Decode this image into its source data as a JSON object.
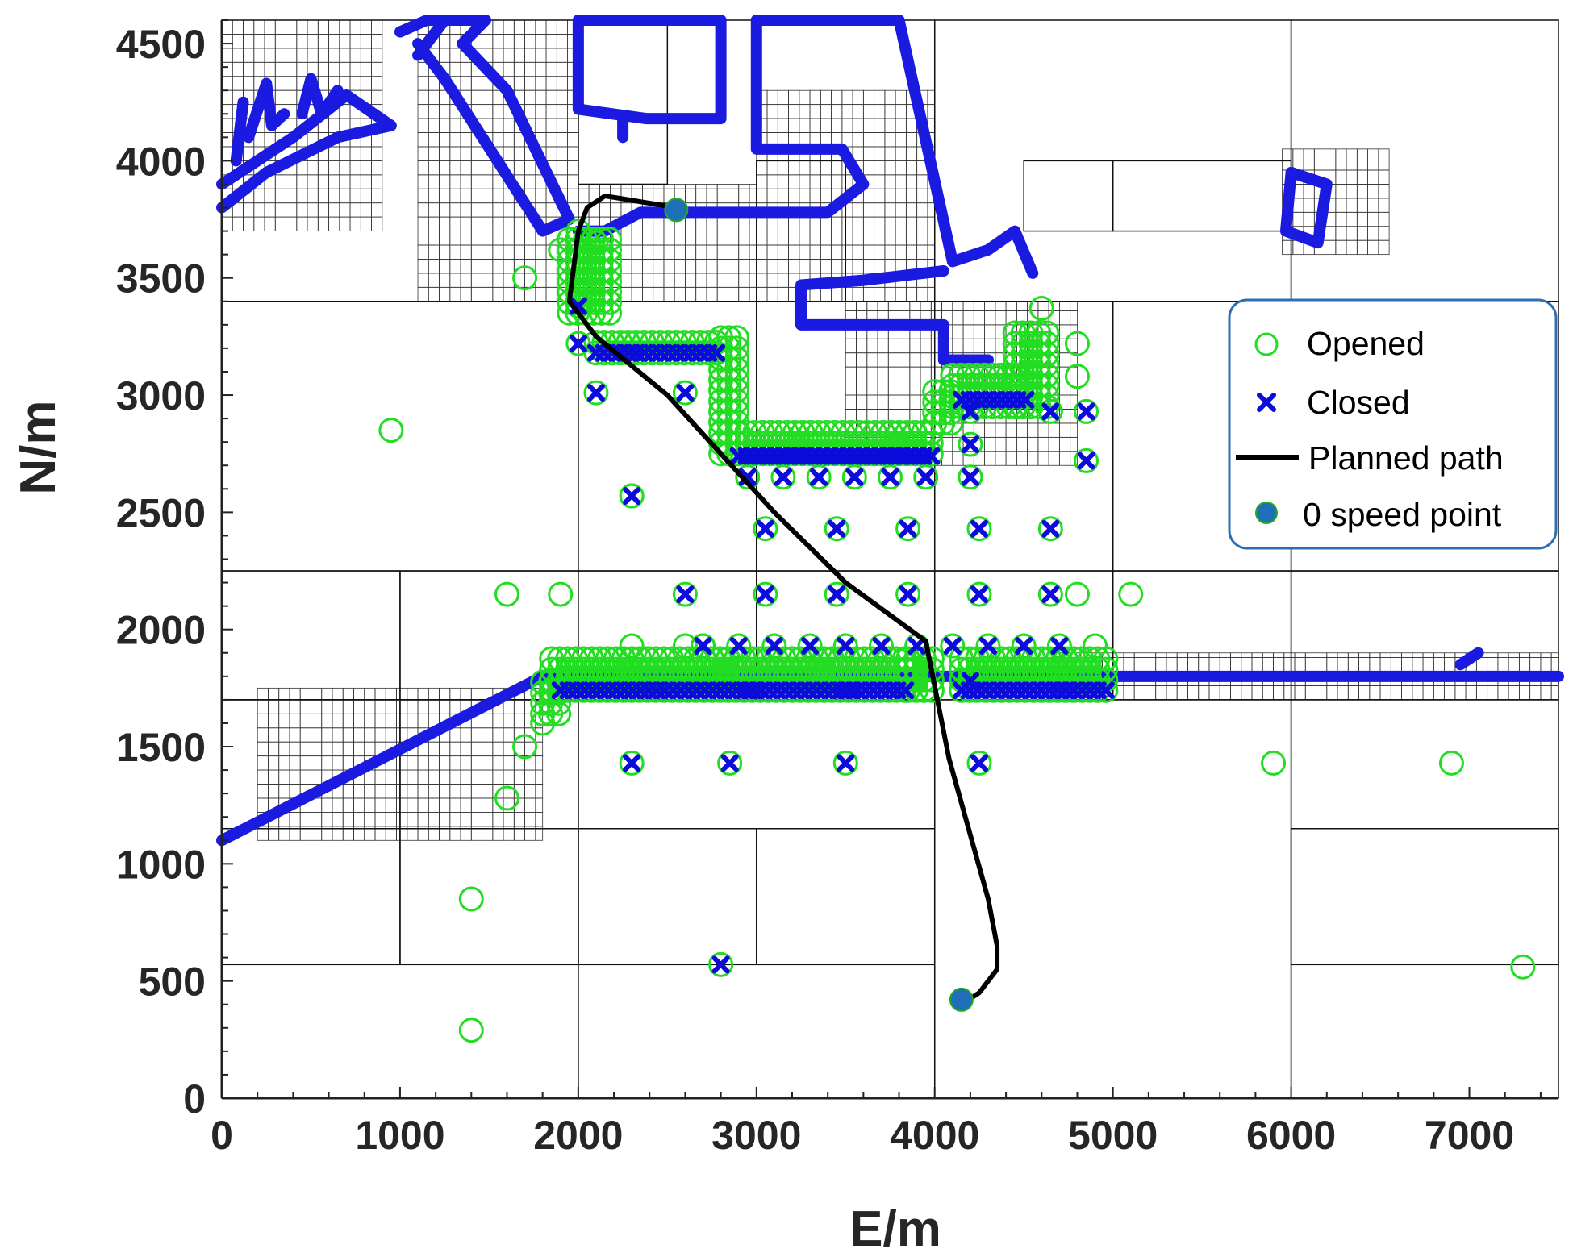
{
  "chart_data": {
    "type": "scatter",
    "title": "",
    "xlabel": "E/m",
    "ylabel": "N/m",
    "xlim": [
      0,
      7500
    ],
    "ylim": [
      0,
      4600
    ],
    "xticks": [
      "0",
      "1000",
      "2000",
      "3000",
      "4000",
      "5000",
      "6000",
      "7000"
    ],
    "yticks": [
      "0",
      "500",
      "1000",
      "1500",
      "2000",
      "2500",
      "3000",
      "3500",
      "4000",
      "4500"
    ],
    "xtick_values": [
      0,
      1000,
      2000,
      3000,
      4000,
      5000,
      6000,
      7000
    ],
    "ytick_values": [
      0,
      500,
      1000,
      1500,
      2000,
      2500,
      3000,
      3500,
      4000,
      4500
    ],
    "legend_position": "upper-right",
    "legend": [
      {
        "label": "Opened",
        "marker": "open-circle"
      },
      {
        "label": "Closed",
        "marker": "x"
      },
      {
        "label": "Planned path",
        "marker": "line"
      },
      {
        "label": "0 speed point",
        "marker": "filled-circle"
      }
    ],
    "colors": {
      "opened": "#22dd22",
      "closed": "#0b0bdc",
      "path": "#000000",
      "zero_speed": "#1f6fb8",
      "obstacle": "#1a1ae0",
      "grid": "#111111"
    },
    "quadtree_cells": [
      [
        0,
        0,
        2000,
        1700
      ],
      [
        2000,
        0,
        4000,
        1700
      ],
      [
        4000,
        0,
        6000,
        1700
      ],
      [
        6000,
        0,
        7500,
        1700
      ],
      [
        0,
        1700,
        1000,
        2250
      ],
      [
        1000,
        1700,
        2000,
        2250
      ],
      [
        2000,
        1700,
        3000,
        2250
      ],
      [
        3000,
        1700,
        4000,
        2250
      ],
      [
        4000,
        1700,
        5000,
        2250
      ],
      [
        5000,
        1700,
        6000,
        2250
      ],
      [
        6000,
        1700,
        7500,
        2250
      ],
      [
        2000,
        2250,
        3000,
        3400
      ],
      [
        3000,
        2250,
        4000,
        3400
      ],
      [
        4000,
        2250,
        5000,
        3400
      ],
      [
        5000,
        2250,
        6000,
        3400
      ],
      [
        6000,
        2250,
        7500,
        3400
      ],
      [
        0,
        2250,
        2000,
        3400
      ],
      [
        0,
        3400,
        2000,
        4600
      ],
      [
        2000,
        3400,
        4000,
        4600
      ],
      [
        4000,
        3400,
        6000,
        4600
      ],
      [
        6000,
        3400,
        7500,
        4600
      ],
      [
        0,
        1150,
        1000,
        1700
      ],
      [
        1000,
        1150,
        2000,
        1700
      ],
      [
        0,
        570,
        1000,
        1150
      ],
      [
        1000,
        570,
        2000,
        1150
      ],
      [
        2000,
        570,
        3000,
        1150
      ],
      [
        3000,
        570,
        4000,
        1150
      ],
      [
        6000,
        570,
        7500,
        1150
      ],
      [
        3000,
        3400,
        3500,
        4000
      ],
      [
        2000,
        3900,
        2500,
        4600
      ],
      [
        4500,
        3700,
        5000,
        4000
      ],
      [
        5000,
        3700,
        6000,
        4000
      ]
    ],
    "fine_grid_regions": [
      [
        0,
        3700,
        900,
        4600
      ],
      [
        1100,
        3400,
        2000,
        4600
      ],
      [
        2000,
        3400,
        3000,
        3900
      ],
      [
        3000,
        3400,
        4000,
        4300
      ],
      [
        3500,
        2700,
        4800,
        3400
      ],
      [
        5950,
        3600,
        6550,
        4050
      ],
      [
        200,
        1100,
        1800,
        1750
      ],
      [
        4700,
        1700,
        7500,
        1900
      ]
    ],
    "obstacles": [
      [
        [
          0,
          3800
        ],
        [
          250,
          3950
        ],
        [
          650,
          4100
        ],
        [
          950,
          4150
        ],
        [
          700,
          4280
        ],
        [
          400,
          4100
        ],
        [
          200,
          4000
        ],
        [
          0,
          3900
        ]
      ],
      [
        [
          80,
          4000
        ],
        [
          120,
          4250
        ]
      ],
      [
        [
          150,
          4100
        ],
        [
          250,
          4330
        ],
        [
          280,
          4150
        ],
        [
          350,
          4200
        ]
      ],
      [
        [
          450,
          4200
        ],
        [
          500,
          4350
        ],
        [
          560,
          4200
        ],
        [
          650,
          4300
        ]
      ],
      [
        [
          1000,
          4550
        ],
        [
          1150,
          4600
        ],
        [
          1480,
          4600
        ],
        [
          1350,
          4500
        ],
        [
          1600,
          4300
        ],
        [
          1950,
          3750
        ],
        [
          1800,
          3700
        ],
        [
          1250,
          4350
        ],
        [
          1100,
          4500
        ]
      ],
      [
        [
          1100,
          4450
        ],
        [
          1250,
          4600
        ]
      ],
      [
        [
          2000,
          4600
        ],
        [
          2800,
          4600
        ],
        [
          2800,
          4180
        ],
        [
          2380,
          4180
        ],
        [
          2000,
          4220
        ],
        [
          2000,
          4600
        ]
      ],
      [
        [
          3000,
          4600
        ],
        [
          3800,
          4600
        ],
        [
          4100,
          3570
        ],
        [
          4300,
          3620
        ],
        [
          4450,
          3700
        ],
        [
          4550,
          3520
        ]
      ],
      [
        [
          3000,
          4600
        ],
        [
          3000,
          4050
        ],
        [
          3480,
          4050
        ],
        [
          3600,
          3900
        ],
        [
          3400,
          3780
        ],
        [
          2950,
          3780
        ],
        [
          2750,
          3780
        ],
        [
          2350,
          3780
        ],
        [
          2150,
          3700
        ],
        [
          2000,
          3700
        ]
      ],
      [
        [
          2250,
          4180
        ],
        [
          2250,
          4100
        ]
      ],
      [
        [
          3250,
          3300
        ],
        [
          3250,
          3470
        ],
        [
          3600,
          3490
        ],
        [
          4050,
          3530
        ]
      ],
      [
        [
          3250,
          3300
        ],
        [
          4050,
          3300
        ],
        [
          4050,
          3150
        ],
        [
          4300,
          3150
        ]
      ],
      [
        [
          0,
          1100
        ],
        [
          900,
          1450
        ],
        [
          1800,
          1800
        ],
        [
          7500,
          1800
        ]
      ],
      [
        [
          6000,
          3950
        ],
        [
          6200,
          3900
        ],
        [
          6150,
          3650
        ],
        [
          5970,
          3700
        ],
        [
          6000,
          3950
        ]
      ],
      [
        [
          6950,
          1850
        ],
        [
          7050,
          1900
        ]
      ]
    ],
    "opened_points": [
      [
        950,
        2850
      ],
      [
        1700,
        3500
      ],
      [
        1600,
        2150
      ],
      [
        1900,
        2150
      ],
      [
        1600,
        1280
      ],
      [
        1700,
        1500
      ],
      [
        1800,
        1600
      ],
      [
        1400,
        850
      ],
      [
        1400,
        290
      ],
      [
        2300,
        2570
      ],
      [
        2600,
        1930
      ],
      [
        2700,
        1930
      ],
      [
        2300,
        1930
      ],
      [
        4900,
        1930
      ],
      [
        4800,
        2150
      ],
      [
        5100,
        2150
      ],
      [
        5900,
        3150
      ],
      [
        5900,
        2570
      ],
      [
        5900,
        1430
      ],
      [
        6900,
        1430
      ],
      [
        7300,
        560
      ],
      [
        4600,
        3370
      ],
      [
        4800,
        3220
      ],
      [
        4800,
        3080
      ],
      [
        1900,
        3620
      ],
      [
        2000,
        3700
      ],
      [
        2100,
        3650
      ]
    ],
    "closed_points": [
      [
        2000,
        3380
      ],
      [
        2000,
        3220
      ],
      [
        2100,
        3010
      ],
      [
        2600,
        3010
      ],
      [
        2300,
        2570
      ],
      [
        2950,
        2650
      ],
      [
        3150,
        2650
      ],
      [
        3350,
        2650
      ],
      [
        3550,
        2650
      ],
      [
        3750,
        2650
      ],
      [
        3950,
        2650
      ],
      [
        4200,
        2650
      ],
      [
        3050,
        2430
      ],
      [
        3450,
        2430
      ],
      [
        3850,
        2430
      ],
      [
        4250,
        2430
      ],
      [
        4650,
        2430
      ],
      [
        2600,
        2150
      ],
      [
        3050,
        2150
      ],
      [
        3450,
        2150
      ],
      [
        3850,
        2150
      ],
      [
        4250,
        2150
      ],
      [
        4650,
        2150
      ],
      [
        2300,
        1430
      ],
      [
        2850,
        1430
      ],
      [
        3500,
        1430
      ],
      [
        4250,
        1430
      ],
      [
        2800,
        570
      ],
      [
        4200,
        2930
      ],
      [
        4200,
        2790
      ],
      [
        4650,
        2930
      ],
      [
        4850,
        2930
      ],
      [
        4850,
        2720
      ],
      [
        2700,
        1930
      ],
      [
        2900,
        1930
      ],
      [
        3100,
        1930
      ],
      [
        3300,
        1930
      ],
      [
        3500,
        1930
      ],
      [
        3700,
        1930
      ],
      [
        3900,
        1930
      ],
      [
        4100,
        1930
      ],
      [
        4300,
        1930
      ],
      [
        4500,
        1930
      ],
      [
        4700,
        1930
      ],
      [
        4200,
        1780
      ]
    ],
    "opened_clusters": [
      {
        "x": [
          1950,
          2200
        ],
        "y": [
          3350,
          3700
        ],
        "step": 45
      },
      {
        "x": [
          2100,
          2800
        ],
        "y": [
          3180,
          3260
        ],
        "step": 45
      },
      {
        "x": [
          2800,
          2900
        ],
        "y": [
          2750,
          3250
        ],
        "step": 45
      },
      {
        "x": [
          2900,
          4000
        ],
        "y": [
          2750,
          2880
        ],
        "step": 45
      },
      {
        "x": [
          4000,
          4100
        ],
        "y": [
          2880,
          3050
        ],
        "step": 45
      },
      {
        "x": [
          4100,
          4500
        ],
        "y": [
          2950,
          3100
        ],
        "step": 45
      },
      {
        "x": [
          4450,
          4650
        ],
        "y": [
          2950,
          3270
        ],
        "step": 45
      },
      {
        "x": [
          1850,
          3850
        ],
        "y": [
          1740,
          1900
        ],
        "step": 45
      },
      {
        "x": [
          3850,
          4000
        ],
        "y": [
          1740,
          1900
        ],
        "step": 45
      },
      {
        "x": [
          4150,
          5000
        ],
        "y": [
          1740,
          1900
        ],
        "step": 45
      },
      {
        "x": [
          1800,
          1900
        ],
        "y": [
          1640,
          1780
        ],
        "step": 45
      }
    ],
    "closed_clusters": [
      {
        "x": [
          2100,
          2800
        ],
        "y": [
          3180,
          3180
        ],
        "step": 45
      },
      {
        "x": [
          2900,
          4000
        ],
        "y": [
          2740,
          2740
        ],
        "step": 45
      },
      {
        "x": [
          1900,
          3850
        ],
        "y": [
          1740,
          1740
        ],
        "step": 45
      },
      {
        "x": [
          4150,
          5000
        ],
        "y": [
          1740,
          1740
        ],
        "step": 45
      },
      {
        "x": [
          4150,
          4550
        ],
        "y": [
          2980,
          2980
        ],
        "step": 45
      }
    ],
    "planned_path": [
      [
        2550,
        3800
      ],
      [
        2150,
        3850
      ],
      [
        2050,
        3800
      ],
      [
        2000,
        3700
      ],
      [
        1950,
        3400
      ],
      [
        2100,
        3250
      ],
      [
        2500,
        3000
      ],
      [
        3100,
        2500
      ],
      [
        3500,
        2200
      ],
      [
        3950,
        1950
      ],
      [
        4080,
        1450
      ],
      [
        4300,
        850
      ],
      [
        4350,
        650
      ],
      [
        4350,
        550
      ],
      [
        4250,
        450
      ],
      [
        4150,
        400
      ]
    ],
    "zero_speed_points": [
      [
        2550,
        3790
      ],
      [
        4150,
        420
      ]
    ]
  }
}
